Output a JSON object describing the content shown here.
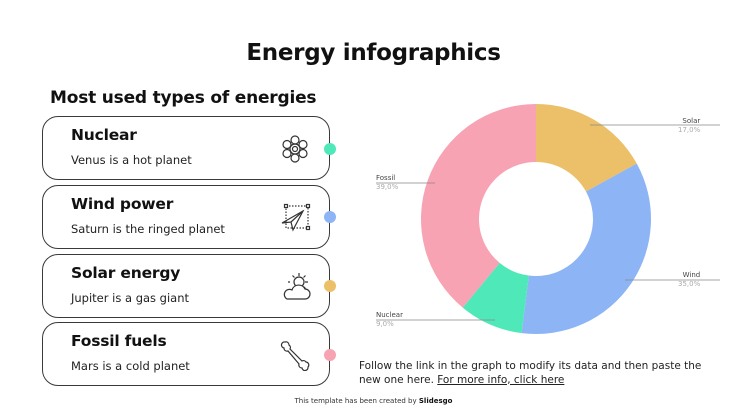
{
  "header": {
    "title": "Energy infographics",
    "subtitle": "Most used types of energies"
  },
  "cards": [
    {
      "heading": "Nuclear",
      "description": "Venus is a hot planet",
      "icon": "atom-icon",
      "color": "#4fe8b8"
    },
    {
      "heading": "Wind power",
      "description": "Saturn is the ringed planet",
      "icon": "paper-plane-icon",
      "color": "#8db4f5"
    },
    {
      "heading": "Solar energy",
      "description": "Jupiter is a gas giant",
      "icon": "sun-cloud-icon",
      "color": "#ecc068"
    },
    {
      "heading": "Fossil fuels",
      "description": "Mars is a cold planet",
      "icon": "bone-icon",
      "color": "#f7a3b3"
    }
  ],
  "note": {
    "text": "Follow the link in the graph to modify its data and then paste the new one here.",
    "link": "For more info, click here"
  },
  "footer": {
    "prefix": "This template has been created by",
    "brand": "Slidesgo"
  },
  "chart_data": {
    "type": "pie",
    "subtype": "donut",
    "title": "",
    "categories": [
      "Solar",
      "Wind",
      "Nuclear",
      "Fossil"
    ],
    "values": [
      17.0,
      35.0,
      9.0,
      39.0
    ],
    "labels": [
      "17,0%",
      "35,0%",
      "9,0%",
      "39,0%"
    ],
    "colors": [
      "#ecc068",
      "#8db4f5",
      "#4fe8b8",
      "#f7a3b3"
    ],
    "start_angle_deg": 0,
    "direction": "clockwise",
    "legend": "none (callout labels)"
  }
}
